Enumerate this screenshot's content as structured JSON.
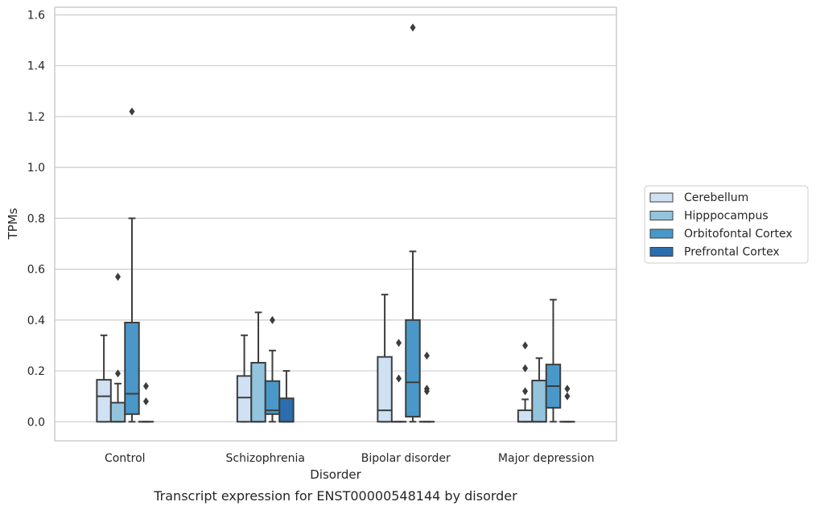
{
  "chart_data": {
    "type": "box",
    "title": "",
    "caption": "Transcript expression for ENST00000548144 by disorder",
    "xlabel": "Disorder",
    "ylabel": "TPMs",
    "ylim": [
      -0.075,
      1.63
    ],
    "yticks": [
      "0.0",
      "0.2",
      "0.4",
      "0.6",
      "0.8",
      "1.0",
      "1.2",
      "1.4",
      "1.6"
    ],
    "ytick_values": [
      0.0,
      0.2,
      0.4,
      0.6,
      0.8,
      1.0,
      1.2,
      1.4,
      1.6
    ],
    "grid": true,
    "legend_position": "right",
    "categories": [
      "Control",
      "Schizophrenia",
      "Bipolar disorder",
      "Major depression"
    ],
    "series": [
      {
        "name": "Cerebellum",
        "color": "#cfe1f2",
        "boxes": [
          {
            "whisker_low": 0.0,
            "q1": 0.0,
            "median": 0.1,
            "q3": 0.165,
            "whisker_high": 0.34,
            "outliers": []
          },
          {
            "whisker_low": 0.0,
            "q1": 0.0,
            "median": 0.095,
            "q3": 0.18,
            "whisker_high": 0.34,
            "outliers": []
          },
          {
            "whisker_low": 0.0,
            "q1": 0.0,
            "median": 0.045,
            "q3": 0.255,
            "whisker_high": 0.5,
            "outliers": []
          },
          {
            "whisker_low": 0.0,
            "q1": 0.0,
            "median": 0.0,
            "q3": 0.045,
            "whisker_high": 0.088,
            "outliers": [
              0.12,
              0.21,
              0.3
            ]
          }
        ]
      },
      {
        "name": "Hipppocampus",
        "color": "#93c4de",
        "boxes": [
          {
            "whisker_low": 0.0,
            "q1": 0.0,
            "median": 0.0,
            "q3": 0.075,
            "whisker_high": 0.15,
            "outliers": [
              0.19,
              0.57
            ]
          },
          {
            "whisker_low": 0.0,
            "q1": 0.0,
            "median": 0.0,
            "q3": 0.232,
            "whisker_high": 0.43,
            "outliers": []
          },
          {
            "whisker_low": 0.0,
            "q1": 0.0,
            "median": 0.0,
            "q3": 0.0,
            "whisker_high": 0.0,
            "outliers": [
              0.17,
              0.31
            ]
          },
          {
            "whisker_low": 0.0,
            "q1": 0.0,
            "median": 0.0,
            "q3": 0.162,
            "whisker_high": 0.25,
            "outliers": []
          }
        ]
      },
      {
        "name": "Orbitofontal Cortex",
        "color": "#4a98c9",
        "boxes": [
          {
            "whisker_low": 0.0,
            "q1": 0.03,
            "median": 0.11,
            "q3": 0.39,
            "whisker_high": 0.8,
            "outliers": [
              1.22
            ]
          },
          {
            "whisker_low": 0.0,
            "q1": 0.03,
            "median": 0.045,
            "q3": 0.16,
            "whisker_high": 0.28,
            "outliers": [
              0.4
            ]
          },
          {
            "whisker_low": 0.0,
            "q1": 0.02,
            "median": 0.155,
            "q3": 0.4,
            "whisker_high": 0.67,
            "outliers": [
              1.55
            ]
          },
          {
            "whisker_low": 0.0,
            "q1": 0.055,
            "median": 0.14,
            "q3": 0.225,
            "whisker_high": 0.48,
            "outliers": []
          }
        ]
      },
      {
        "name": "Prefrontal Cortex",
        "color": "#2c6ead",
        "boxes": [
          {
            "whisker_low": 0.0,
            "q1": 0.0,
            "median": 0.0,
            "q3": 0.0,
            "whisker_high": 0.0,
            "outliers": [
              0.08,
              0.14
            ]
          },
          {
            "whisker_low": 0.0,
            "q1": 0.0,
            "median": 0.0,
            "q3": 0.092,
            "whisker_high": 0.2,
            "outliers": []
          },
          {
            "whisker_low": 0.0,
            "q1": 0.0,
            "median": 0.0,
            "q3": 0.0,
            "whisker_high": 0.0,
            "outliers": [
              0.12,
              0.13,
              0.26
            ]
          },
          {
            "whisker_low": 0.0,
            "q1": 0.0,
            "median": 0.0,
            "q3": 0.0,
            "whisker_high": 0.0,
            "outliers": [
              0.1,
              0.13
            ]
          }
        ]
      }
    ]
  }
}
